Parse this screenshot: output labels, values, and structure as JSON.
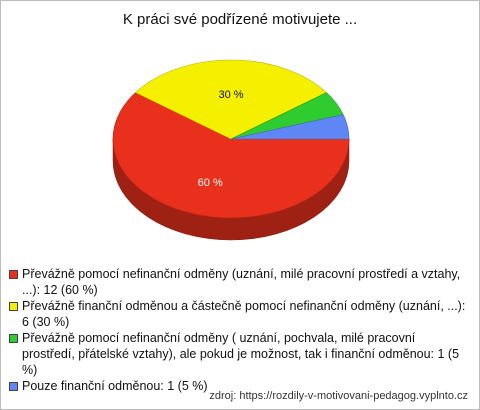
{
  "chart_data": {
    "type": "pie",
    "title": "K práci své podřízené motivujete ...",
    "slices": [
      {
        "label": "Převážně pomocí nefinanční odměny (uznání, milé pracovní prostředí a vztahy, ...): 12 (60 %)",
        "value": 12,
        "percent": 60,
        "percent_label": "60 %",
        "color": "#e8301c"
      },
      {
        "label": "Převážně finanční odměnou a částečně pomocí nefinanční odměny (uznání, ...): 6 (30 %)",
        "value": 6,
        "percent": 30,
        "percent_label": "30 %",
        "color": "#f5f000"
      },
      {
        "label": "Převážně pomocí nefinanční odměny ( uznání, pochvala, milé pracovní prostředí, přátelské vztahy), ale pokud je možnost, tak i finanční odměnou: 1 (5 %)",
        "value": 1,
        "percent": 5,
        "percent_label": "",
        "color": "#2ecc2e"
      },
      {
        "label": "Pouze finanční odměnou: 1 (5 %)",
        "value": 1,
        "percent": 5,
        "percent_label": "",
        "color": "#5f86f5"
      }
    ],
    "legend_position": "bottom"
  },
  "source": "zdroj: https://rozdily-v-motivovani-pedagog.vyplnto.cz"
}
